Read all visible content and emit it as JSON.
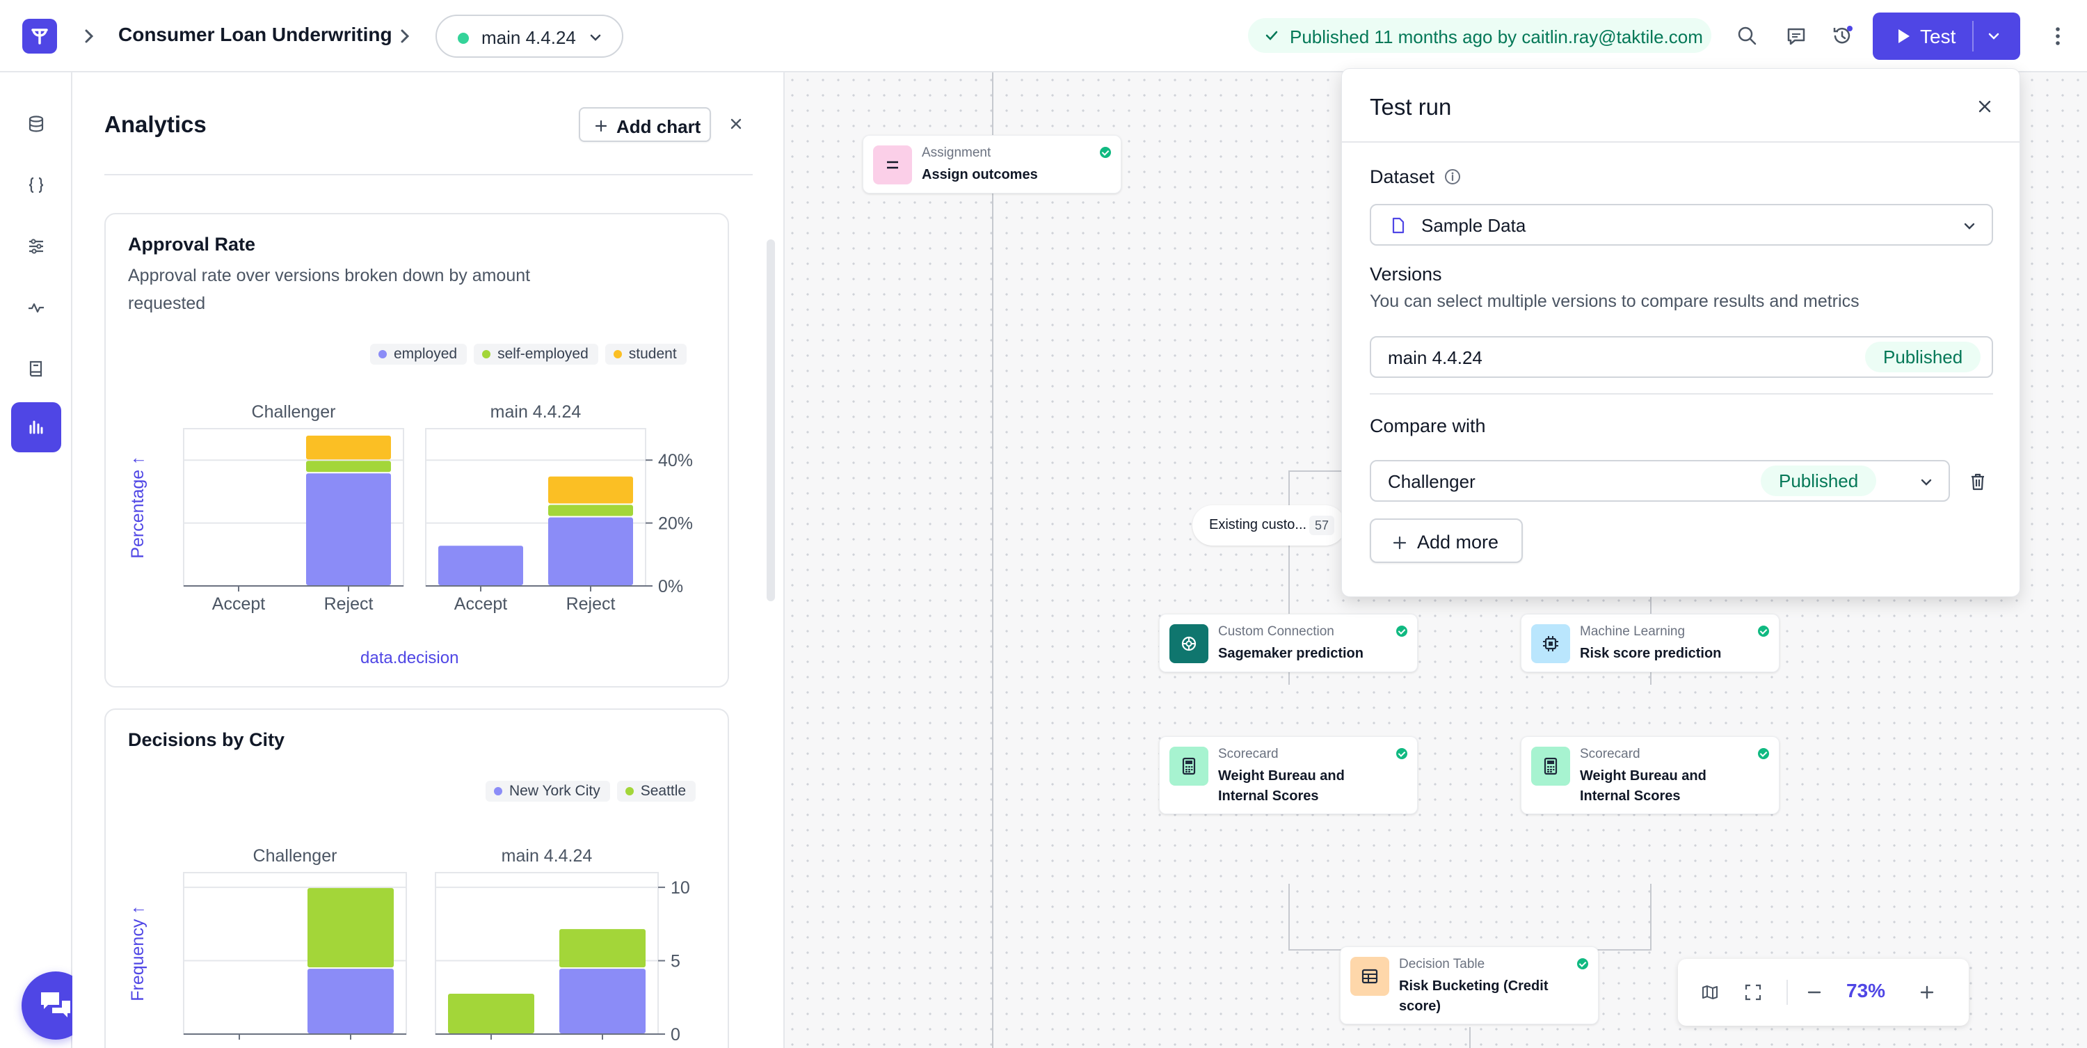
{
  "header": {
    "app_title": "Consumer Loan Underwriting",
    "version": "main 4.4.24",
    "publish_status": "Published 11 months ago by caitlin.ray@taktile.com",
    "test_button": "Test"
  },
  "analytics": {
    "title": "Analytics",
    "add_chart": "Add chart",
    "charts": [
      {
        "title": "Approval Rate",
        "subtitle": "Approval rate over versions broken down by amount requested",
        "legend": [
          "employed",
          "self-employed",
          "student"
        ],
        "ylabel": "Percentage ↑",
        "xlabel_field": "data.decision"
      },
      {
        "title": "Decisions by City",
        "legend": [
          "New York City",
          "Seattle"
        ],
        "ylabel": "Frequency ↑"
      }
    ]
  },
  "chart_data": [
    {
      "type": "bar",
      "title": "Approval Rate",
      "stacked": true,
      "panels": [
        "Challenger",
        "main 4.4.24"
      ],
      "categories": [
        "Accept",
        "Reject"
      ],
      "ylabel": "Percentage",
      "ylim": [
        0,
        50
      ],
      "yticks": [
        "0%",
        "20%",
        "40%"
      ],
      "series": [
        {
          "name": "employed",
          "color": "#8b8cf7",
          "values": {
            "Challenger": [
              0,
              36
            ],
            "main 4.4.24": [
              13,
              22
            ]
          }
        },
        {
          "name": "self-employed",
          "color": "#a3d639",
          "values": {
            "Challenger": [
              0,
              4
            ],
            "main 4.4.24": [
              0,
              4
            ]
          }
        },
        {
          "name": "student",
          "color": "#fbbf24",
          "values": {
            "Challenger": [
              0,
              8
            ],
            "main 4.4.24": [
              0,
              9
            ]
          }
        }
      ]
    },
    {
      "type": "bar",
      "title": "Decisions by City",
      "stacked": true,
      "panels": [
        "Challenger",
        "main 4.4.24"
      ],
      "ylabel": "Frequency",
      "ylim": [
        0,
        11
      ],
      "yticks": [
        "0",
        "5",
        "10"
      ],
      "series": [
        {
          "name": "New York City",
          "color": "#8b8cf7",
          "values": {
            "Challenger": [
              0,
              4.5
            ],
            "main 4.4.24": [
              0,
              4.5
            ]
          }
        },
        {
          "name": "Seattle",
          "color": "#a3d639",
          "values": {
            "Challenger": [
              0,
              5.5
            ],
            "main 4.4.24": [
              2.8,
              2.7
            ]
          }
        }
      ]
    }
  ],
  "canvas": {
    "nodes": [
      {
        "kind": "Assignment",
        "name": "Assign outcomes"
      },
      {
        "kind": "Custom Connection",
        "name": "Sagemaker prediction"
      },
      {
        "kind": "Machine Learning",
        "name": "Risk score prediction"
      },
      {
        "kind": "Scorecard",
        "name": "Weight Bureau and Internal Scores"
      },
      {
        "kind": "Scorecard",
        "name": "Weight Bureau and Internal Scores"
      },
      {
        "kind": "Decision Table",
        "name": "Risk Bucketing (Credit score)"
      }
    ],
    "branch_label": "Existing custo...",
    "branch_count": "57",
    "zoom": "73%"
  },
  "test_run": {
    "title": "Test run",
    "dataset_label": "Dataset",
    "dataset_value": "Sample Data",
    "versions_label": "Versions",
    "versions_desc": "You can select multiple versions to compare results and metrics",
    "version_value": "main 4.4.24",
    "version_status": "Published",
    "compare_label": "Compare with",
    "compare_value": "Challenger",
    "compare_status": "Published",
    "add_more": "Add more"
  }
}
